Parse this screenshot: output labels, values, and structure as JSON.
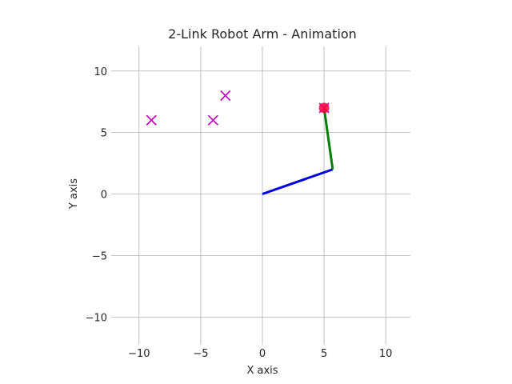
{
  "chart_data": {
    "type": "line",
    "title": "2-Link Robot Arm - Animation",
    "xlabel": "X axis",
    "ylabel": "Y axis",
    "xlim": [
      -12,
      12
    ],
    "ylim": [
      -12,
      12
    ],
    "xticks": [
      -10,
      -5,
      0,
      5,
      10
    ],
    "yticks": [
      -10,
      -5,
      0,
      5,
      10
    ],
    "xtick_labels": [
      "−10",
      "−5",
      "0",
      "5",
      "10"
    ],
    "ytick_labels": [
      "−10",
      "−5",
      "0",
      "5",
      "10"
    ],
    "grid": true,
    "series": [
      {
        "type": "line",
        "color": "#0000dd",
        "points": [
          [
            0,
            0
          ],
          [
            5.7,
            2
          ]
        ]
      },
      {
        "type": "line",
        "color": "#008000",
        "points": [
          [
            5.7,
            2
          ],
          [
            5,
            7
          ]
        ]
      },
      {
        "type": "scatter",
        "marker": "x",
        "color": "#c000c0",
        "points": [
          [
            -9,
            6
          ],
          [
            -4,
            6
          ],
          [
            -3,
            8
          ],
          [
            5,
            7
          ]
        ]
      },
      {
        "type": "scatter",
        "marker": "circle",
        "color": "#ff0040",
        "points": [
          [
            5,
            7
          ]
        ]
      }
    ]
  }
}
